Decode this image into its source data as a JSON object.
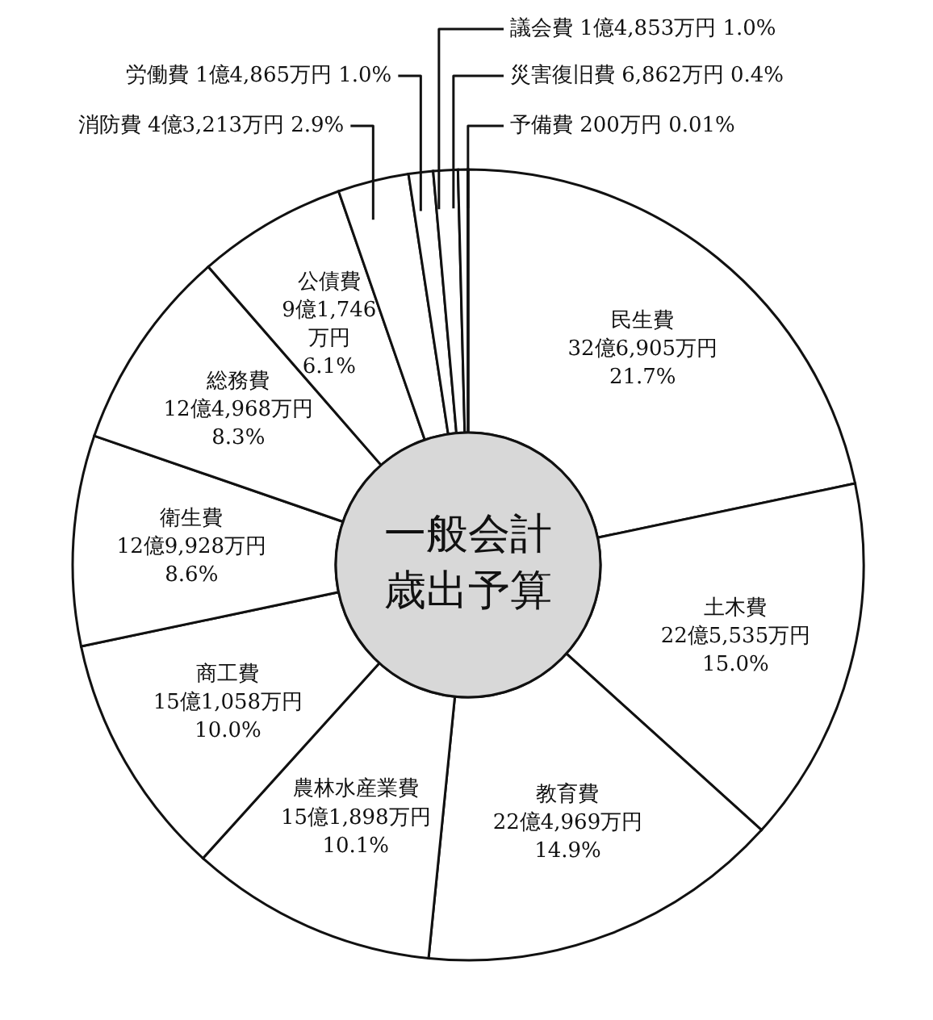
{
  "chart_data": {
    "type": "donut",
    "title": "一般会計歳出予算",
    "categories": [
      "民生費",
      "土木費",
      "教育費",
      "農林水産業費",
      "商工費",
      "衛生費",
      "総務費",
      "公債費",
      "消防費",
      "労働費",
      "議会費",
      "災害復旧費",
      "予備費"
    ],
    "values": [
      21.7,
      15.0,
      14.9,
      10.1,
      10.0,
      8.6,
      8.3,
      6.1,
      2.9,
      1.0,
      1.0,
      0.4,
      0.01
    ],
    "value_labels": [
      "32億6,905万円\n21.7%",
      "22億5,535万円\n15.0%",
      "22億4,969万円\n14.9%",
      "15億1,898万円\n10.1%",
      "15億1,058万円\n10.0%",
      "12億9,928万円\n8.6%",
      "12億4,968万円\n8.3%",
      "9億1,746\n万円\n6.1%",
      "4億3,213万円  2.9%",
      "1億4,865万円  1.0%",
      "1億4,853万円  1.0%",
      "6,862万円  0.4%",
      "200万円  0.01%"
    ],
    "colors": [
      "#ffffff",
      "#ffffff",
      "#ffffff",
      "#ffffff",
      "#ffffff",
      "#ffffff",
      "#ffffff",
      "#ffffff",
      "#ffffff",
      "#ffffff",
      "#ffffff",
      "#ffffff",
      "#ffffff"
    ]
  }
}
